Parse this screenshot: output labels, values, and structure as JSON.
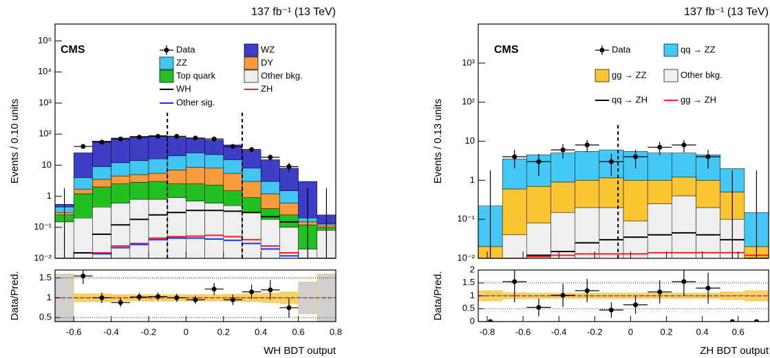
{
  "chart_data": [
    {
      "type": "histogram",
      "title": "137 fb⁻¹ (13 TeV)",
      "label": "CMS",
      "ylabel": "Events / 0.10 units",
      "xlabel": "WH BDT output",
      "log_y": true,
      "bins": [
        -0.7,
        -0.6,
        -0.5,
        -0.4,
        -0.3,
        -0.2,
        -0.1,
        0,
        0.1,
        0.2,
        0.3,
        0.4,
        0.5,
        0.6,
        0.7,
        0.8
      ],
      "xlim": [
        -0.7,
        0.8
      ],
      "xticks": [
        -0.6,
        -0.4,
        -0.2,
        0,
        0.2,
        0.4,
        0.6,
        0.8
      ],
      "ylim": [
        0.01,
        350000
      ],
      "yticks": [
        {
          "value": 100000,
          "label": "10⁵"
        },
        {
          "value": 10000,
          "label": "10⁴"
        },
        {
          "value": 1000,
          "label": "10³"
        },
        {
          "value": 100,
          "label": "10²"
        },
        10,
        1,
        {
          "value": 0.1,
          "label": "10⁻¹"
        },
        {
          "value": 0.01,
          "label": "10⁻²"
        }
      ],
      "series": [
        {
          "name": "Other bkg.",
          "color": "#efefef",
          "values": [
            0.15,
            0.2,
            0.45,
            0.6,
            0.8,
            0.8,
            0.9,
            0.7,
            0.6,
            0.5,
            0.3,
            0.18,
            0.1,
            0.02,
            0.08
          ]
        },
        {
          "name": "Top quark",
          "color": "#22c122",
          "values": [
            0.1,
            1.0,
            1.55,
            1.9,
            2.0,
            2.2,
            1.6,
            1.8,
            1.7,
            1.0,
            0.6,
            0.22,
            0.15,
            0.1,
            0.02
          ]
        },
        {
          "name": "DY",
          "color": "#f79b3d",
          "values": [
            0.05,
            0.5,
            1.5,
            2.0,
            2.2,
            2.5,
            4.5,
            6.0,
            5.7,
            4.0,
            2.1,
            0.8,
            0.35,
            0.03,
            0.02
          ]
        },
        {
          "name": "ZZ",
          "color": "#41c6f2",
          "values": [
            0.15,
            2.3,
            5.5,
            7.5,
            9,
            10.5,
            13,
            16.5,
            14,
            9.5,
            5,
            1.8,
            0.9,
            0.05,
            0.01
          ]
        },
        {
          "name": "WZ",
          "color": "#3d3dc6",
          "values": [
            0.1,
            21,
            51,
            63,
            71,
            74,
            60,
            50,
            43,
            30,
            22,
            12,
            6.5,
            2.8,
            0.12
          ]
        }
      ],
      "lines": [
        {
          "name": "WH",
          "color": "#000000",
          "values": [
            0.01,
            0.015,
            0.06,
            0.12,
            0.18,
            0.25,
            0.3,
            0.35,
            0.35,
            0.33,
            0.3,
            0.22,
            0.15,
            0.01,
            0.01
          ]
        },
        {
          "name": "ZH",
          "color": "#ff1a1a",
          "values": [
            0.01,
            0.01,
            0.015,
            0.025,
            0.03,
            0.045,
            0.05,
            0.052,
            0.055,
            0.05,
            0.04,
            0.025,
            0.015,
            0.01,
            0.01
          ]
        },
        {
          "name": "Other sig.",
          "color": "#1530ff",
          "values": [
            0.01,
            0.01,
            0.014,
            0.022,
            0.028,
            0.04,
            0.045,
            0.045,
            0.042,
            0.038,
            0.03,
            0.02,
            0.012,
            0.01,
            0.01
          ]
        }
      ],
      "data": {
        "name": "Data",
        "values": [
          0,
          40,
          55,
          70,
          80,
          85,
          85,
          75,
          70,
          40,
          32,
          18,
          9,
          0,
          0
        ],
        "errors": [
          1.8,
          6,
          7,
          8,
          9,
          9,
          9,
          9,
          8,
          6,
          6,
          4,
          3,
          1.8,
          1.8
        ]
      },
      "cuts": [
        -0.1,
        0.3
      ],
      "ratio": {
        "ylabel": "Data/Pred.",
        "ylim": [
          0.4,
          1.7
        ],
        "yticks": [
          0.5,
          1,
          1.5
        ],
        "ref": 1,
        "grid": true,
        "unc_color": "#f3d268",
        "values": [
          null,
          1.55,
          1.0,
          0.88,
          1.02,
          1.03,
          1.0,
          0.95,
          1.22,
          0.95,
          1.15,
          1.2,
          0.75,
          null,
          null
        ],
        "errors": [
          null,
          0.2,
          0.13,
          0.11,
          0.1,
          0.1,
          0.1,
          0.1,
          0.15,
          0.13,
          0.18,
          0.25,
          0.25,
          null,
          null
        ],
        "unc": [
          0.6,
          0.1,
          0.1,
          0.08,
          0.08,
          0.08,
          0.08,
          0.08,
          0.08,
          0.09,
          0.1,
          0.12,
          0.15,
          0.4,
          0.6
        ]
      }
    },
    {
      "type": "histogram",
      "title": "137 fb⁻¹ (13 TeV)",
      "label": "CMS",
      "ylabel": "Events / 0.13 units",
      "xlabel": "ZH BDT output",
      "log_y": true,
      "bins": [
        -0.85,
        -0.715,
        -0.58,
        -0.445,
        -0.31,
        -0.175,
        -0.04,
        0.095,
        0.23,
        0.365,
        0.5,
        0.635,
        0.77
      ],
      "xlim": [
        -0.85,
        0.77
      ],
      "xticks": [
        -0.8,
        -0.6,
        -0.4,
        -0.2,
        0,
        0.2,
        0.4,
        0.6
      ],
      "ylim": [
        0.01,
        10000
      ],
      "yticks": [
        {
          "value": 1000,
          "label": "10³"
        },
        {
          "value": 100,
          "label": "10²"
        },
        10,
        1,
        {
          "value": 0.1,
          "label": "10⁻¹"
        },
        {
          "value": 0.01,
          "label": "10⁻²"
        }
      ],
      "series": [
        {
          "name": "Other bkg.",
          "color": "#efefef",
          "values": [
            0.01,
            0.04,
            0.08,
            0.15,
            0.2,
            0.2,
            0.09,
            0.25,
            0.4,
            0.2,
            0.1,
            0.01
          ]
        },
        {
          "name": "gg → ZZ",
          "color": "#fbc532",
          "values": [
            0.01,
            0.56,
            0.62,
            0.75,
            0.8,
            0.95,
            0.91,
            0.75,
            0.8,
            0.8,
            0.4,
            0.01
          ]
        },
        {
          "name": "qq → ZZ",
          "color": "#44c8f5",
          "values": [
            0.2,
            2.9,
            3.8,
            4.1,
            4.5,
            4.85,
            4.5,
            4.0,
            3.8,
            3.5,
            1.5,
            0.13
          ]
        }
      ],
      "lines": [
        {
          "name": "qq → ZH",
          "color": "#000000",
          "values": [
            0.01,
            0.01,
            0.012,
            0.015,
            0.025,
            0.03,
            0.035,
            0.04,
            0.045,
            0.04,
            0.03,
            0.01
          ]
        },
        {
          "name": "gg → ZH",
          "color": "#ff1a1a",
          "values": [
            0.01,
            0.01,
            0.011,
            0.012,
            0.013,
            0.013,
            0.013,
            0.014,
            0.014,
            0.014,
            0.014,
            0.012
          ]
        }
      ],
      "data": {
        "name": "Data",
        "values": [
          0,
          4,
          3,
          6,
          8,
          3,
          4,
          7,
          8,
          4,
          0,
          0
        ],
        "errors": [
          1.8,
          2,
          1.7,
          2.4,
          2.8,
          1.7,
          2,
          2.6,
          2.8,
          2,
          1.8,
          1.8
        ]
      },
      "cuts": [
        -0.07
      ],
      "ratio": {
        "ylabel": "Data/Pred.",
        "ylim": [
          0,
          2
        ],
        "yticks": [
          0,
          0.5,
          1,
          1.5,
          2
        ],
        "ref": 1,
        "grid": true,
        "unc_color": "#f3d268",
        "values": [
          0,
          1.55,
          0.55,
          1.02,
          1.2,
          0.45,
          0.65,
          1.15,
          1.55,
          1.3,
          0,
          0
        ],
        "errors": [
          null,
          0.8,
          0.35,
          0.45,
          0.45,
          0.3,
          0.35,
          0.45,
          0.55,
          0.6,
          null,
          null
        ],
        "unc": [
          0.2,
          0.12,
          0.1,
          0.1,
          0.1,
          0.1,
          0.1,
          0.1,
          0.1,
          0.1,
          0.15,
          0.2
        ]
      }
    }
  ]
}
